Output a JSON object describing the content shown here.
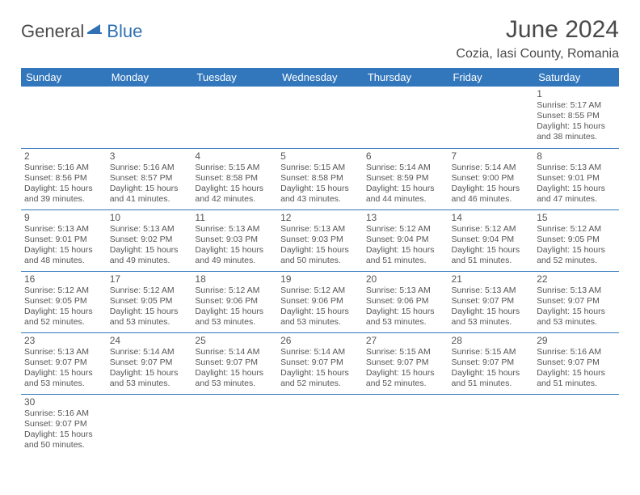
{
  "logo": {
    "part1": "General",
    "part2": "Blue"
  },
  "title": "June 2024",
  "location": "Cozia, Iasi County, Romania",
  "colors": {
    "header_bg": "#3277bc",
    "header_fg": "#ffffff",
    "border": "#3277bc",
    "text": "#555555",
    "title_text": "#4a4a4a",
    "logo_blue": "#2f71b3"
  },
  "layout": {
    "first_weekday_index": 6,
    "days_in_month": 30
  },
  "weekdays": [
    "Sunday",
    "Monday",
    "Tuesday",
    "Wednesday",
    "Thursday",
    "Friday",
    "Saturday"
  ],
  "days": [
    {
      "n": 1,
      "sunrise": "5:17 AM",
      "sunset": "8:55 PM",
      "daylight": "15 hours and 38 minutes."
    },
    {
      "n": 2,
      "sunrise": "5:16 AM",
      "sunset": "8:56 PM",
      "daylight": "15 hours and 39 minutes."
    },
    {
      "n": 3,
      "sunrise": "5:16 AM",
      "sunset": "8:57 PM",
      "daylight": "15 hours and 41 minutes."
    },
    {
      "n": 4,
      "sunrise": "5:15 AM",
      "sunset": "8:58 PM",
      "daylight": "15 hours and 42 minutes."
    },
    {
      "n": 5,
      "sunrise": "5:15 AM",
      "sunset": "8:58 PM",
      "daylight": "15 hours and 43 minutes."
    },
    {
      "n": 6,
      "sunrise": "5:14 AM",
      "sunset": "8:59 PM",
      "daylight": "15 hours and 44 minutes."
    },
    {
      "n": 7,
      "sunrise": "5:14 AM",
      "sunset": "9:00 PM",
      "daylight": "15 hours and 46 minutes."
    },
    {
      "n": 8,
      "sunrise": "5:13 AM",
      "sunset": "9:01 PM",
      "daylight": "15 hours and 47 minutes."
    },
    {
      "n": 9,
      "sunrise": "5:13 AM",
      "sunset": "9:01 PM",
      "daylight": "15 hours and 48 minutes."
    },
    {
      "n": 10,
      "sunrise": "5:13 AM",
      "sunset": "9:02 PM",
      "daylight": "15 hours and 49 minutes."
    },
    {
      "n": 11,
      "sunrise": "5:13 AM",
      "sunset": "9:03 PM",
      "daylight": "15 hours and 49 minutes."
    },
    {
      "n": 12,
      "sunrise": "5:13 AM",
      "sunset": "9:03 PM",
      "daylight": "15 hours and 50 minutes."
    },
    {
      "n": 13,
      "sunrise": "5:12 AM",
      "sunset": "9:04 PM",
      "daylight": "15 hours and 51 minutes."
    },
    {
      "n": 14,
      "sunrise": "5:12 AM",
      "sunset": "9:04 PM",
      "daylight": "15 hours and 51 minutes."
    },
    {
      "n": 15,
      "sunrise": "5:12 AM",
      "sunset": "9:05 PM",
      "daylight": "15 hours and 52 minutes."
    },
    {
      "n": 16,
      "sunrise": "5:12 AM",
      "sunset": "9:05 PM",
      "daylight": "15 hours and 52 minutes."
    },
    {
      "n": 17,
      "sunrise": "5:12 AM",
      "sunset": "9:05 PM",
      "daylight": "15 hours and 53 minutes."
    },
    {
      "n": 18,
      "sunrise": "5:12 AM",
      "sunset": "9:06 PM",
      "daylight": "15 hours and 53 minutes."
    },
    {
      "n": 19,
      "sunrise": "5:12 AM",
      "sunset": "9:06 PM",
      "daylight": "15 hours and 53 minutes."
    },
    {
      "n": 20,
      "sunrise": "5:13 AM",
      "sunset": "9:06 PM",
      "daylight": "15 hours and 53 minutes."
    },
    {
      "n": 21,
      "sunrise": "5:13 AM",
      "sunset": "9:07 PM",
      "daylight": "15 hours and 53 minutes."
    },
    {
      "n": 22,
      "sunrise": "5:13 AM",
      "sunset": "9:07 PM",
      "daylight": "15 hours and 53 minutes."
    },
    {
      "n": 23,
      "sunrise": "5:13 AM",
      "sunset": "9:07 PM",
      "daylight": "15 hours and 53 minutes."
    },
    {
      "n": 24,
      "sunrise": "5:14 AM",
      "sunset": "9:07 PM",
      "daylight": "15 hours and 53 minutes."
    },
    {
      "n": 25,
      "sunrise": "5:14 AM",
      "sunset": "9:07 PM",
      "daylight": "15 hours and 53 minutes."
    },
    {
      "n": 26,
      "sunrise": "5:14 AM",
      "sunset": "9:07 PM",
      "daylight": "15 hours and 52 minutes."
    },
    {
      "n": 27,
      "sunrise": "5:15 AM",
      "sunset": "9:07 PM",
      "daylight": "15 hours and 52 minutes."
    },
    {
      "n": 28,
      "sunrise": "5:15 AM",
      "sunset": "9:07 PM",
      "daylight": "15 hours and 51 minutes."
    },
    {
      "n": 29,
      "sunrise": "5:16 AM",
      "sunset": "9:07 PM",
      "daylight": "15 hours and 51 minutes."
    },
    {
      "n": 30,
      "sunrise": "5:16 AM",
      "sunset": "9:07 PM",
      "daylight": "15 hours and 50 minutes."
    }
  ],
  "labels": {
    "sunrise": "Sunrise:",
    "sunset": "Sunset:",
    "daylight": "Daylight:"
  }
}
